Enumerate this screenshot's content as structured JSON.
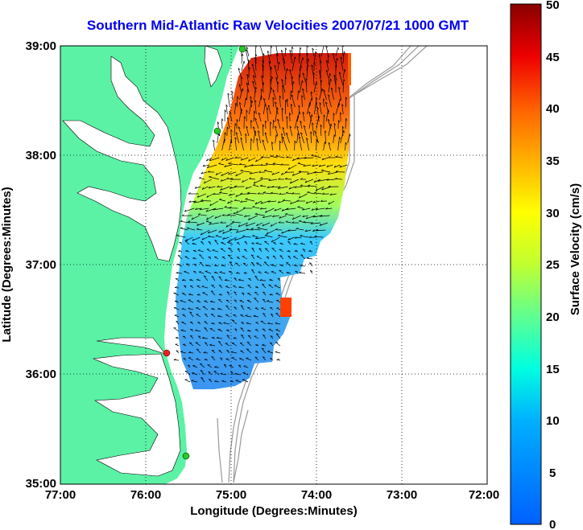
{
  "title": "Southern Mid-Atlantic Raw Velocities 2007/07/21 1000 GMT",
  "axes": {
    "xlabel": "Longitude (Degrees:Minutes)",
    "ylabel": "Latitude (Degrees:Minutes)",
    "x_ticks": [
      "77:00",
      "76:00",
      "75:00",
      "74:00",
      "73:00",
      "72:00"
    ],
    "y_ticks": [
      "39:00",
      "38:00",
      "37:00",
      "36:00",
      "35:00"
    ]
  },
  "colorbar": {
    "label": "Surface Velocity (cm/s)",
    "ticks": [
      "50",
      "45",
      "40",
      "35",
      "30",
      "25",
      "20",
      "15",
      "10",
      "5",
      "0"
    ],
    "range": [
      0,
      50
    ],
    "gradient": [
      "#7f0000",
      "#ff0000",
      "#ff8000",
      "#ffff00",
      "#80ff80",
      "#00ffff",
      "#0080ff",
      "#0000ff"
    ]
  },
  "colors": {
    "land": "#5bf2a6",
    "water": "#ffffff",
    "bathymetry": "#999999",
    "grid": "#000000",
    "station_green": "#22cc22",
    "station_red": "#ee2222"
  },
  "legend_items": []
}
